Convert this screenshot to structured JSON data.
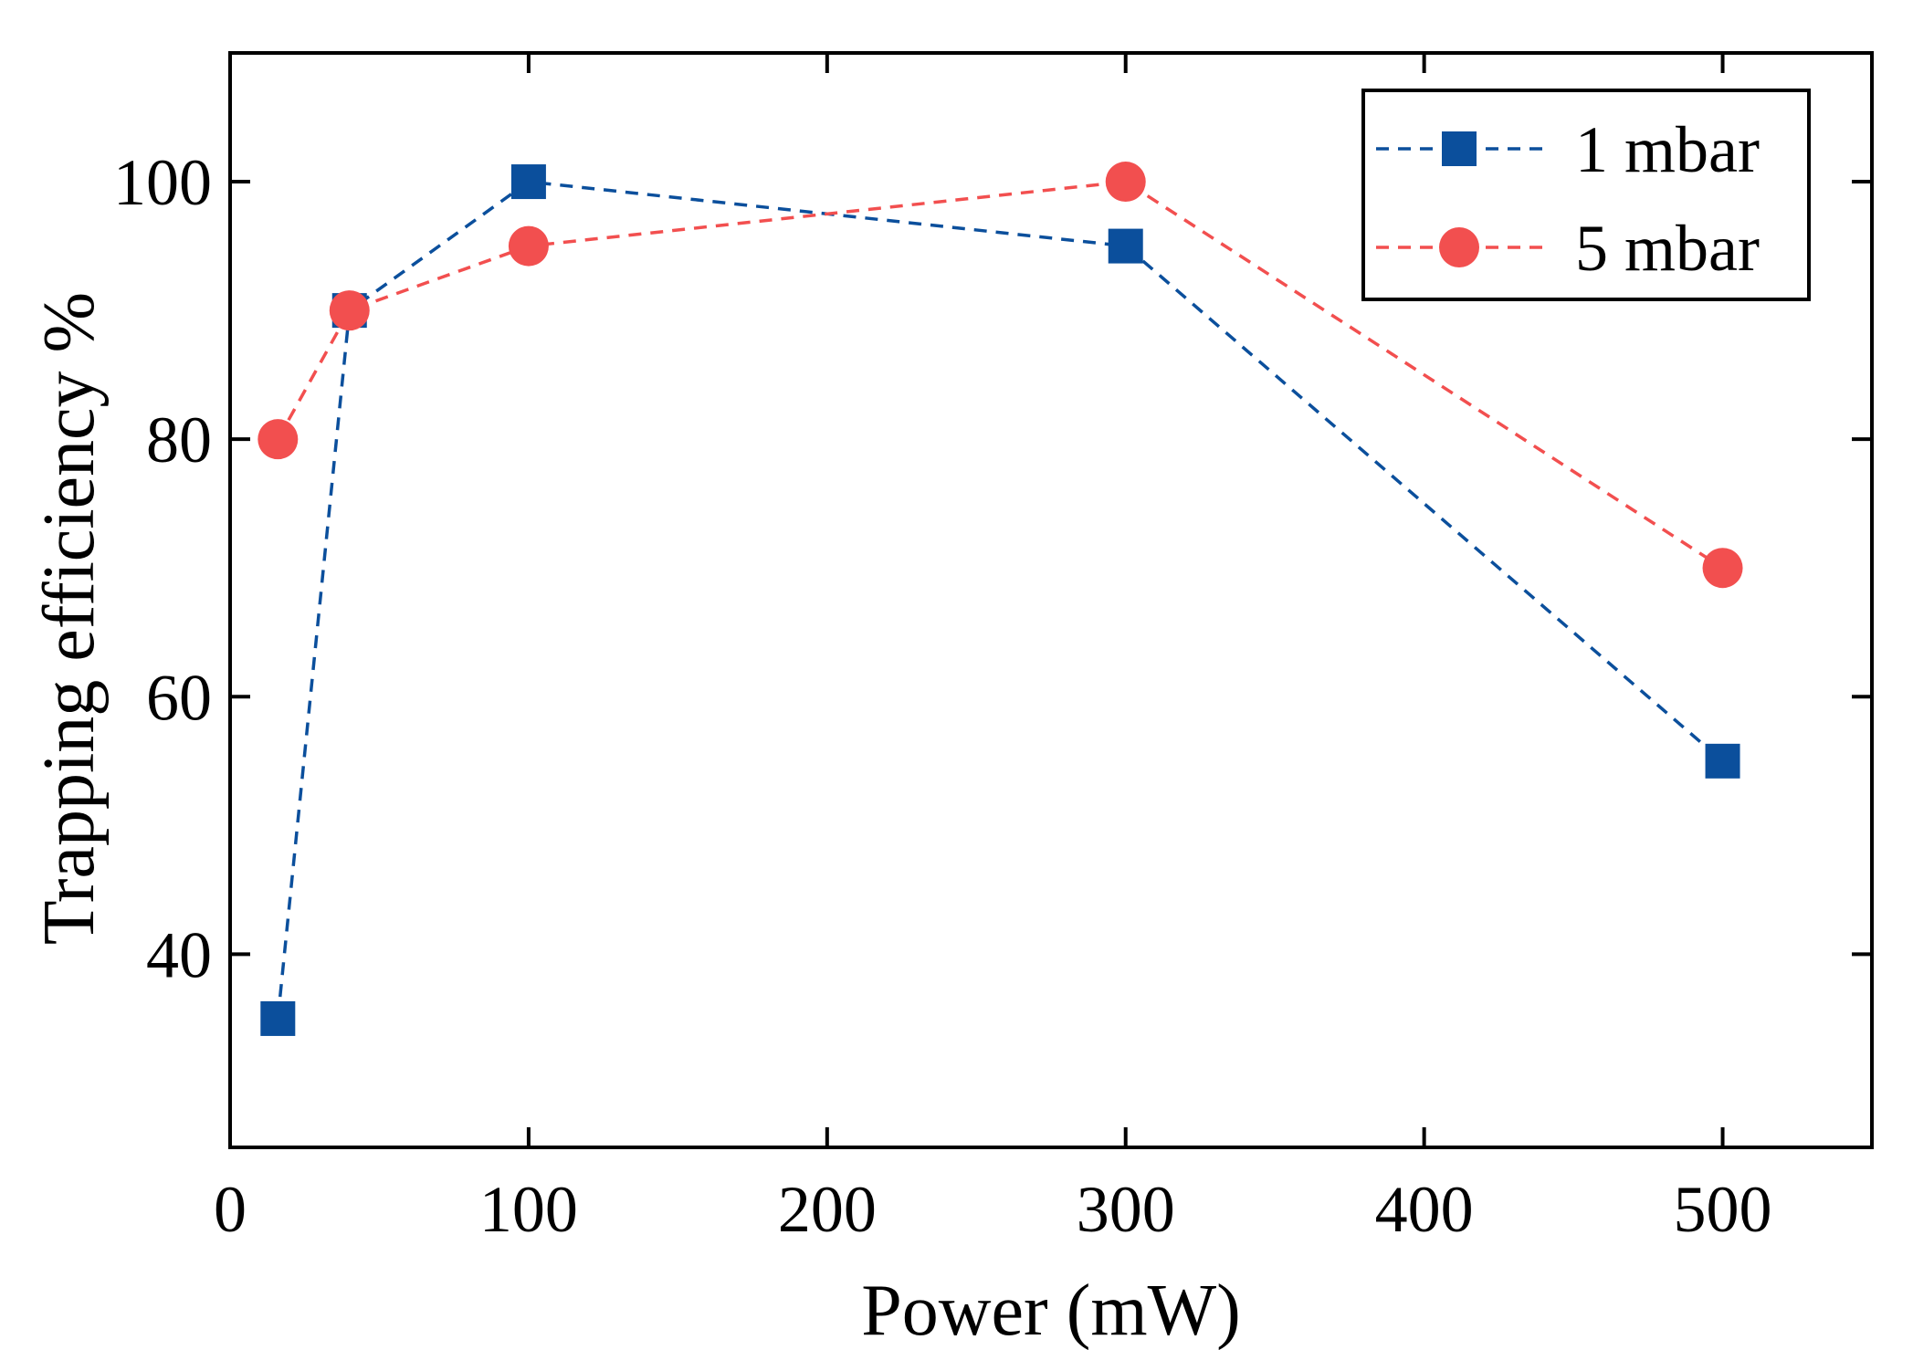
{
  "chart_data": {
    "type": "line",
    "title": "",
    "xlabel": "Power (mW)",
    "ylabel": "Trapping efficiency %",
    "xlim": [
      0,
      550
    ],
    "ylim": [
      25,
      110
    ],
    "xticks": [
      0,
      100,
      200,
      300,
      400,
      500
    ],
    "yticks": [
      40,
      60,
      80,
      100
    ],
    "grid": false,
    "legend_position": "top-right",
    "series": [
      {
        "name": "1 mbar",
        "marker": "square",
        "color": "#0b4f9c",
        "line_style": "dashed",
        "x": [
          16,
          40,
          100,
          300,
          500
        ],
        "y": [
          35,
          90,
          100,
          95,
          55
        ]
      },
      {
        "name": "5 mbar",
        "marker": "circle",
        "color": "#f24f4f",
        "line_style": "dashed",
        "x": [
          16,
          40,
          100,
          300,
          500
        ],
        "y": [
          80,
          90,
          95,
          100,
          70
        ]
      }
    ]
  }
}
